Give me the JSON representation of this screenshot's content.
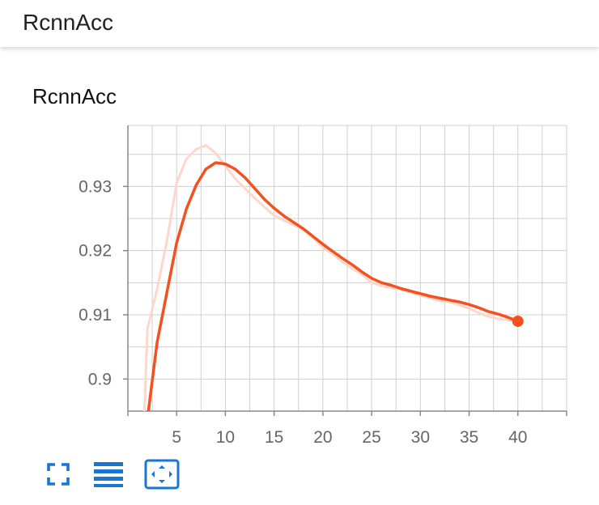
{
  "header": {
    "title": "RcnnAcc"
  },
  "card": {
    "title": "RcnnAcc"
  },
  "toolbar": {
    "buttons": [
      {
        "name": "fullscreen-button",
        "icon": "fullscreen-icon"
      },
      {
        "name": "toggle-log-button",
        "icon": "list-icon"
      },
      {
        "name": "fit-domain-button",
        "icon": "fit-to-data-icon"
      }
    ],
    "accent": "#1976d2"
  },
  "chart_data": {
    "type": "line",
    "title": "",
    "xlabel": "",
    "ylabel": "",
    "xlim": [
      0,
      45
    ],
    "ylim": [
      0.895,
      0.9395
    ],
    "xticks": [
      5,
      10,
      15,
      20,
      25,
      30,
      35,
      40
    ],
    "xtick_labels": [
      "5",
      "10",
      "15",
      "20",
      "25",
      "30",
      "35",
      "40"
    ],
    "yticks": [
      0.9,
      0.91,
      0.92,
      0.93
    ],
    "ytick_labels": [
      "0.9",
      "0.91",
      "0.92",
      "0.93"
    ],
    "grid": true,
    "legend": "none",
    "series": [
      {
        "role": "raw",
        "color": "#fdd7cc",
        "x": [
          1.7,
          2,
          3,
          4,
          5,
          6,
          7,
          8,
          9,
          10,
          11,
          12,
          13,
          14,
          15,
          16,
          17,
          18,
          19,
          20,
          21,
          22,
          23,
          24,
          25,
          26,
          27,
          28,
          29,
          30,
          31,
          32,
          33,
          34,
          35,
          36,
          37,
          38,
          39,
          40
        ],
        "y": [
          0.895,
          0.9078,
          0.914,
          0.9215,
          0.9305,
          0.9343,
          0.9358,
          0.9364,
          0.9352,
          0.9332,
          0.9312,
          0.9297,
          0.9282,
          0.9268,
          0.9255,
          0.9247,
          0.924,
          0.9233,
          0.922,
          0.9205,
          0.9195,
          0.9182,
          0.9172,
          0.9163,
          0.915,
          0.9145,
          0.9142,
          0.914,
          0.9135,
          0.913,
          0.9126,
          0.9122,
          0.912,
          0.9115,
          0.911,
          0.9103,
          0.9097,
          0.9094,
          0.9092,
          0.909
        ]
      },
      {
        "role": "smoothed",
        "color": "#f4511e",
        "x": [
          2.1,
          3,
          4,
          5,
          6,
          7,
          8,
          9,
          10,
          11,
          12,
          13,
          14,
          15,
          16,
          17,
          18,
          19,
          20,
          21,
          22,
          23,
          24,
          25,
          26,
          27,
          28,
          29,
          30,
          31,
          32,
          33,
          34,
          35,
          36,
          37,
          38,
          39,
          40
        ],
        "y": [
          0.895,
          0.9057,
          0.9135,
          0.9212,
          0.9265,
          0.9302,
          0.9327,
          0.9337,
          0.9335,
          0.9327,
          0.9314,
          0.9297,
          0.928,
          0.9266,
          0.9254,
          0.9244,
          0.9234,
          0.9222,
          0.921,
          0.9199,
          0.9188,
          0.9178,
          0.9167,
          0.9157,
          0.915,
          0.9146,
          0.9141,
          0.9137,
          0.9133,
          0.9129,
          0.9126,
          0.9123,
          0.912,
          0.9116,
          0.9111,
          0.9105,
          0.9101,
          0.9096,
          0.909
        ]
      }
    ]
  }
}
